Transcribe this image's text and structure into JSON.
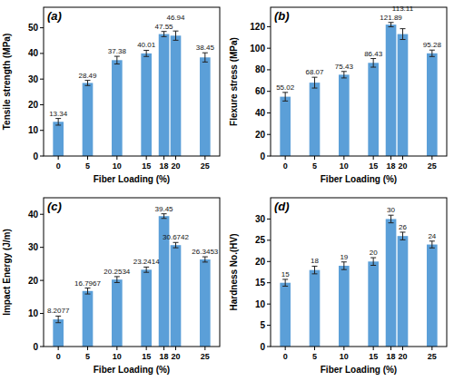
{
  "chart_data": [
    {
      "type": "bar",
      "title": "(a)",
      "x_label": "Fiber Loading (%)",
      "y_label": "Tensile strength (MPa)",
      "x": [
        0,
        5,
        10,
        15,
        18,
        20,
        25
      ],
      "values": [
        13.34,
        28.49,
        37.38,
        40.01,
        47.55,
        46.94,
        38.45
      ],
      "errors": [
        1.3,
        1.0,
        1.5,
        1.2,
        1.0,
        1.8,
        1.8
      ],
      "xlim": [
        -2.5,
        27.5
      ],
      "xticks": [
        0,
        5,
        10,
        15,
        18,
        20,
        25
      ],
      "ylim": [
        0,
        58
      ],
      "yticks": [
        0,
        10,
        20,
        30,
        40,
        50
      ],
      "color": "#5b9fd8",
      "data_labels": true,
      "grid": false
    },
    {
      "type": "bar",
      "title": "(b)",
      "x_label": "Fiber Loading (%)",
      "y_label": "Flexure stress (MPa)",
      "x": [
        0,
        5,
        10,
        15,
        18,
        20,
        25
      ],
      "values": [
        55.02,
        68.07,
        75.43,
        86.43,
        121.89,
        113.11,
        95.28
      ],
      "errors": [
        4,
        5,
        3,
        4,
        2,
        5,
        3
      ],
      "xlim": [
        -2.5,
        27.5
      ],
      "xticks": [
        0,
        5,
        10,
        15,
        18,
        20,
        25
      ],
      "ylim": [
        0,
        138
      ],
      "yticks": [
        0,
        20,
        40,
        60,
        80,
        100,
        120
      ],
      "color": "#5b9fd8",
      "data_labels": true,
      "grid": false
    },
    {
      "type": "bar",
      "title": "(c)",
      "x_label": "Fiber Loading (%)",
      "y_label": "Impact Energy (J/m)",
      "x": [
        0,
        5,
        10,
        15,
        18,
        20,
        25
      ],
      "values": [
        8.2077,
        16.7967,
        20.2534,
        23.2414,
        39.45,
        30.6742,
        26.3453
      ],
      "errors": [
        1.0,
        0.9,
        0.9,
        0.8,
        0.7,
        0.8,
        0.8
      ],
      "xlim": [
        -2.5,
        27.5
      ],
      "xticks": [
        0,
        5,
        10,
        15,
        18,
        20,
        25
      ],
      "ylim": [
        0,
        45
      ],
      "yticks": [
        0,
        10,
        20,
        30,
        40
      ],
      "color": "#5b9fd8",
      "data_labels": true,
      "grid": false
    },
    {
      "type": "bar",
      "title": "(d)",
      "x_label": "Fiber Loading (%)",
      "y_label": "Hardness No.(HV)",
      "x": [
        0,
        5,
        10,
        15,
        18,
        20,
        25
      ],
      "values": [
        15,
        18,
        19,
        20,
        30,
        26,
        24
      ],
      "errors": [
        0.8,
        0.9,
        0.9,
        0.9,
        0.9,
        0.9,
        0.8
      ],
      "xlim": [
        -2.5,
        27.5
      ],
      "xticks": [
        0,
        5,
        10,
        15,
        18,
        20,
        25
      ],
      "ylim": [
        0,
        35
      ],
      "yticks": [
        0,
        5,
        10,
        15,
        20,
        25,
        30
      ],
      "color": "#5b9fd8",
      "data_labels": true,
      "grid": false
    }
  ]
}
